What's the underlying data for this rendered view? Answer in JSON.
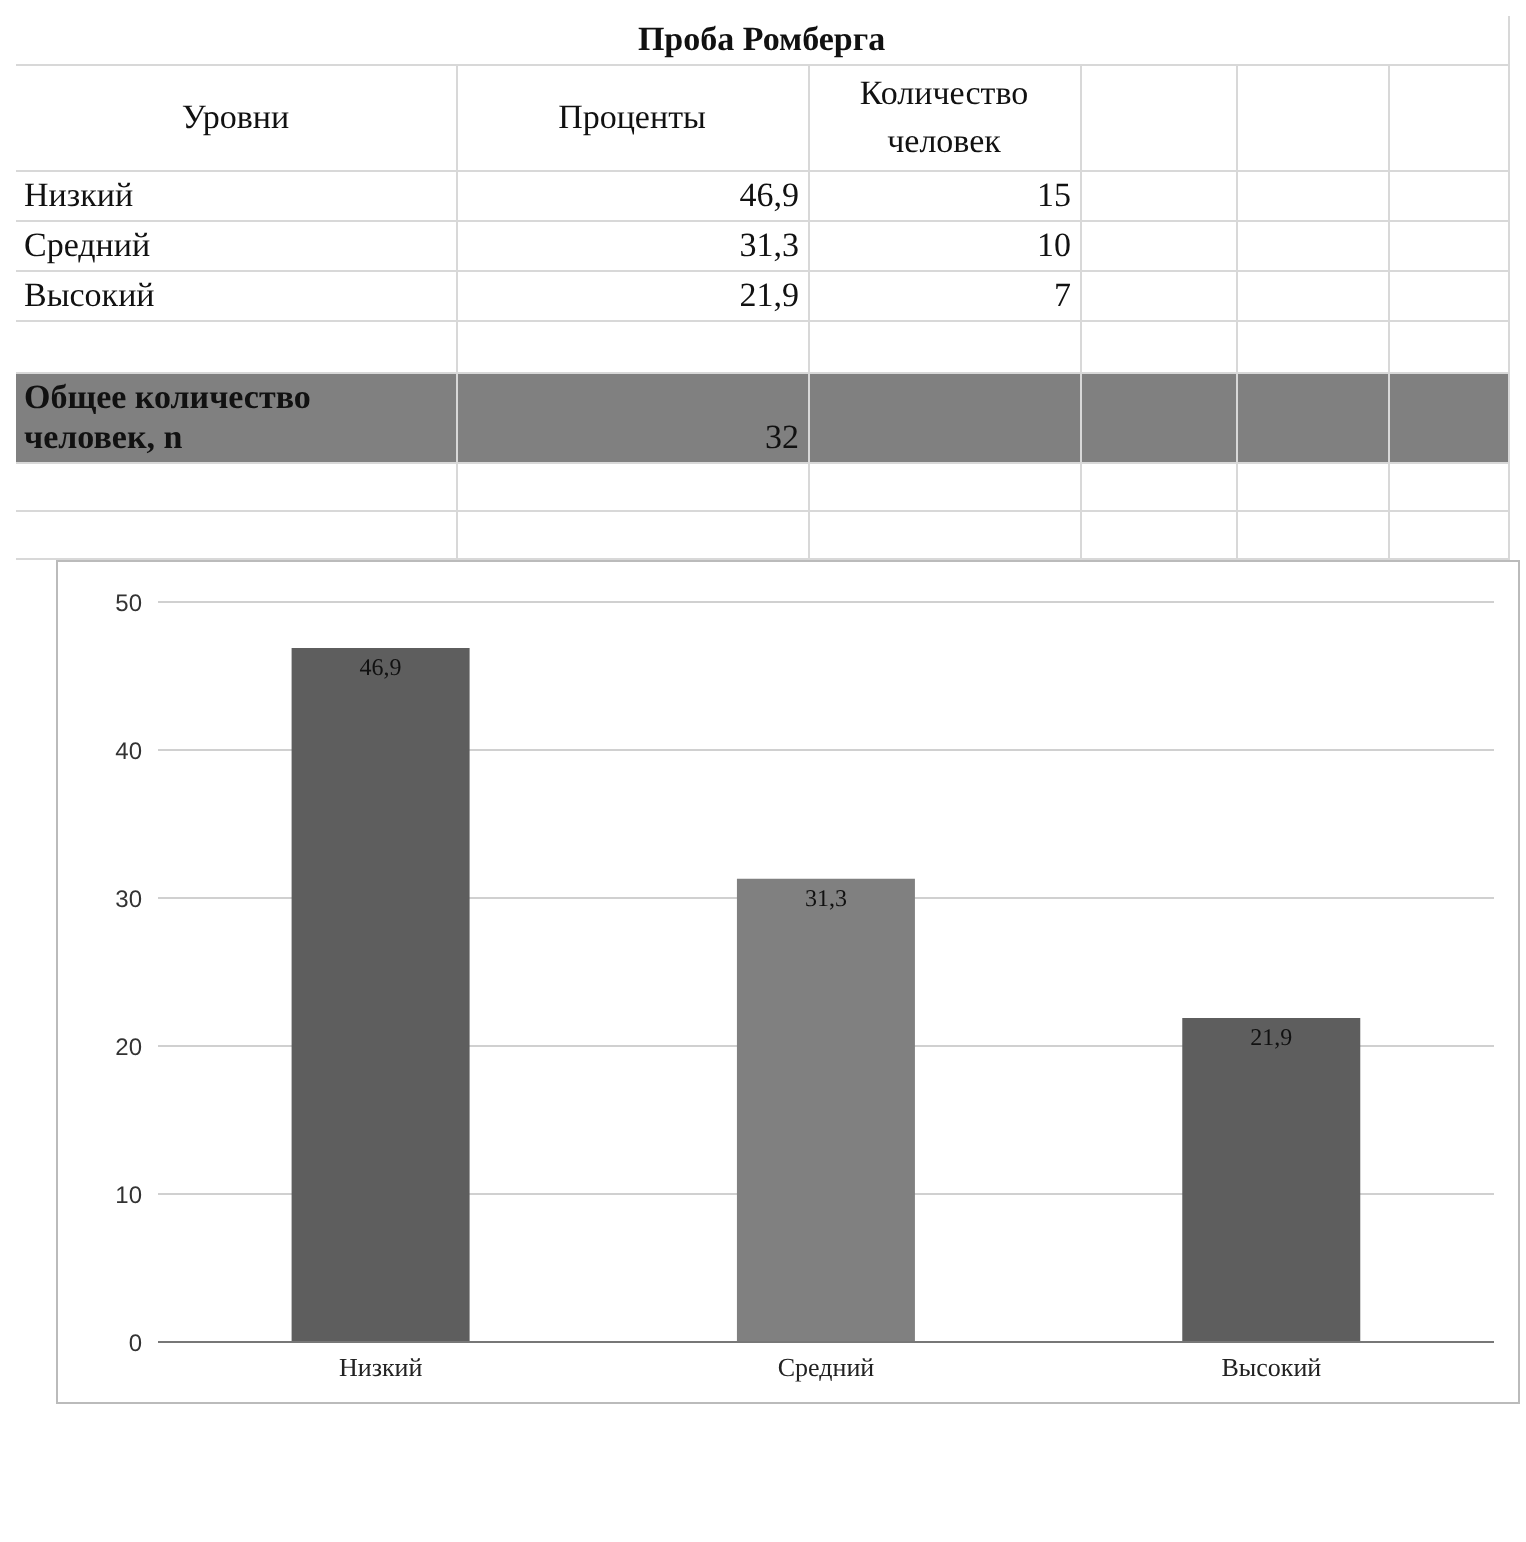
{
  "chart_data": [
    {
      "type": "other",
      "title": "Проба Ромберга",
      "xlabel": "Уровни",
      "categories": [
        "Низкий",
        "Средний",
        "Высокий"
      ],
      "annotations": [
        "Проценты",
        "Количество человек",
        "46,9",
        "15",
        "31,3",
        "10",
        "21,9",
        "7",
        "Общее количество человек, n",
        "32"
      ]
    },
    {
      "type": "bar",
      "categories": [
        "Низкий",
        "Средний",
        "Высокий"
      ],
      "values": [
        46.9,
        31.3,
        21.9
      ],
      "colors": [
        "#5e5e5e",
        "#808080",
        "#5e5e5e"
      ],
      "ylim": [
        0,
        50
      ],
      "yticks": [
        0,
        10,
        20,
        30,
        40,
        50
      ],
      "grid": "y",
      "value_labels": [
        "46,9",
        "31,3",
        "21,9"
      ]
    }
  ]
}
